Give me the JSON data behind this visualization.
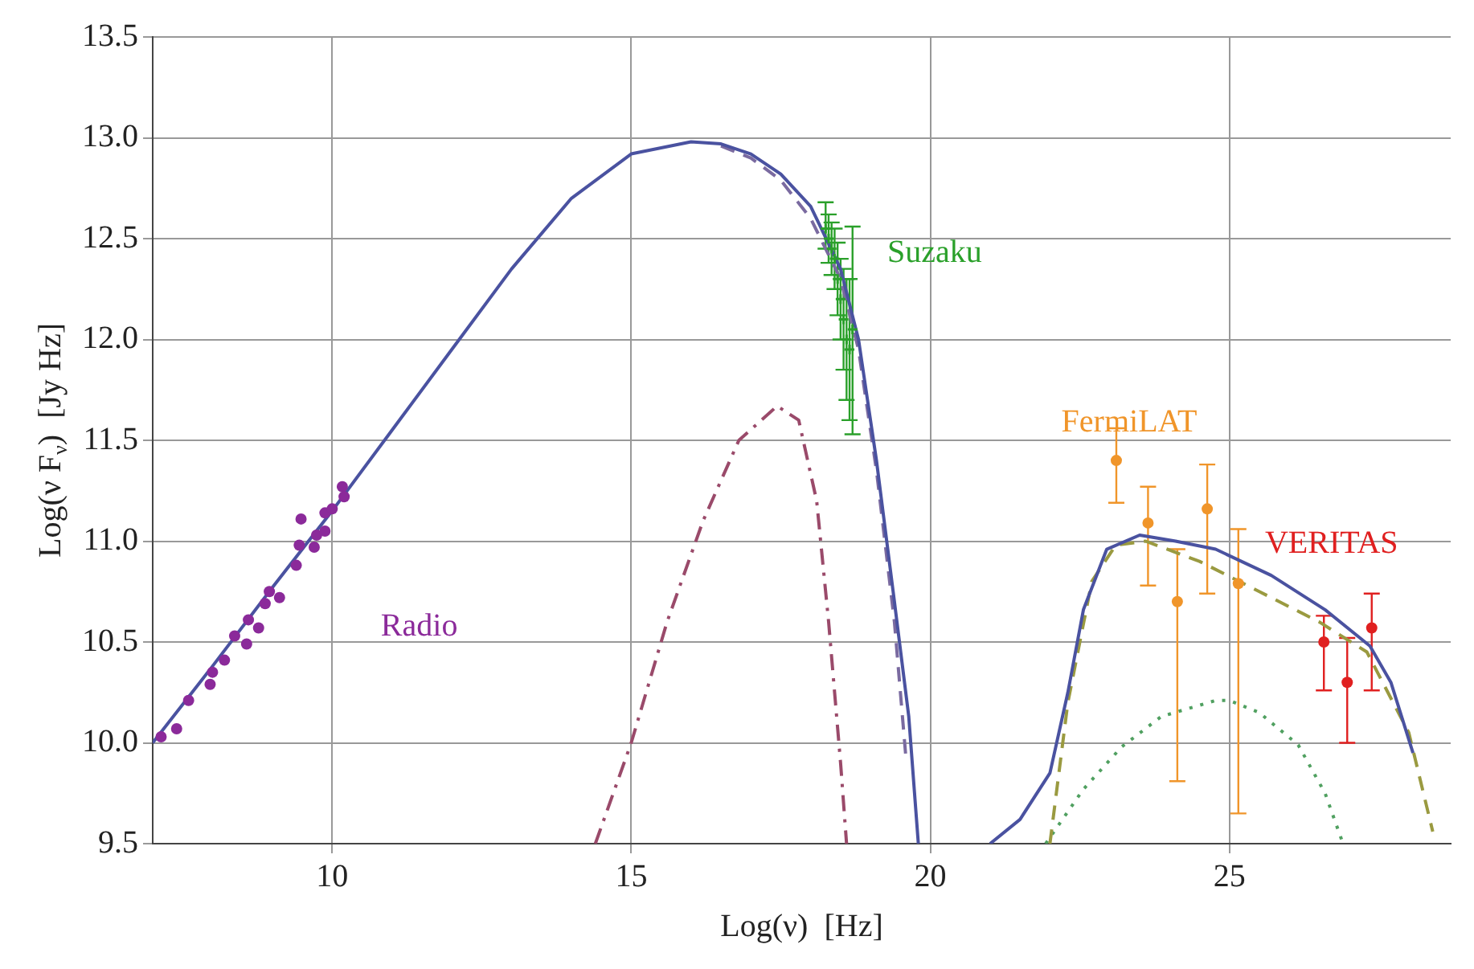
{
  "chart_data": {
    "type": "scatter",
    "xlabel": "Log(ν)  [Hz]",
    "ylabel": "Log(ν F$_{ν}$)  [Jy Hz]",
    "xlim": [
      7,
      28.7
    ],
    "xticks": [
      10,
      15,
      20,
      25
    ],
    "ylim": [
      9.5,
      13.5
    ],
    "yticks": [
      9.5,
      {
        "value": 10,
        "label": "10.0"
      },
      10.5,
      {
        "value": 11,
        "label": "11.0"
      },
      11.5,
      {
        "value": 12,
        "label": "12.0"
      },
      12.5,
      {
        "value": 13,
        "label": "13.0"
      },
      13.5
    ],
    "grid": true,
    "legend": false,
    "series": [
      {
        "name": "Radio",
        "type": "scatter",
        "marker": "circle",
        "color": "#8b2a9a",
        "x": [
          7.14,
          7.4,
          7.6,
          7.96,
          8.0,
          8.2,
          8.37,
          8.57,
          8.6,
          8.77,
          8.88,
          8.95,
          9.12,
          9.4,
          9.45,
          9.48,
          9.7,
          9.74,
          9.88,
          9.88,
          10.0,
          10.17,
          10.2
        ],
        "values": [
          10.03,
          10.07,
          10.21,
          10.29,
          10.35,
          10.41,
          10.53,
          10.49,
          10.61,
          10.57,
          10.69,
          10.75,
          10.72,
          10.88,
          10.98,
          11.11,
          10.97,
          11.03,
          11.05,
          11.14,
          11.16,
          11.27,
          11.22
        ]
      },
      {
        "name": "Suzaku",
        "type": "scatter",
        "marker": "cross",
        "color": "#2aa02a",
        "x": [
          18.25,
          18.3,
          18.35,
          18.4,
          18.45,
          18.5,
          18.55,
          18.6,
          18.65,
          18.7
        ],
        "values": [
          12.55,
          12.5,
          12.45,
          12.4,
          12.3,
          12.2,
          12.1,
          12.0,
          11.95,
          12.05
        ],
        "errors": [
          [
            12.45,
            12.68
          ],
          [
            12.38,
            12.62
          ],
          [
            12.32,
            12.58
          ],
          [
            12.25,
            12.55
          ],
          [
            12.12,
            12.48
          ],
          [
            12.0,
            12.4
          ],
          [
            11.85,
            12.35
          ],
          [
            11.7,
            12.3
          ],
          [
            11.6,
            12.3
          ],
          [
            11.53,
            12.56
          ]
        ]
      },
      {
        "name": "FermiLAT",
        "type": "scatter",
        "marker": "circle",
        "color": "#f0952a",
        "x": [
          23.11,
          23.64,
          24.13,
          24.63,
          25.15
        ],
        "values": [
          11.4,
          11.09,
          10.7,
          11.16,
          10.79
        ],
        "errors": [
          [
            11.19,
            11.56
          ],
          [
            10.78,
            11.27
          ],
          [
            9.81,
            10.96
          ],
          [
            10.74,
            11.38
          ],
          [
            9.65,
            11.06
          ]
        ]
      },
      {
        "name": "VERITAS",
        "type": "scatter",
        "marker": "circle",
        "color": "#e02020",
        "x": [
          26.58,
          26.97,
          27.38
        ],
        "values": [
          10.5,
          10.3,
          10.57
        ],
        "errors": [
          [
            10.26,
            10.63
          ],
          [
            10.0,
            10.52
          ],
          [
            10.26,
            10.74
          ]
        ]
      },
      {
        "type": "line",
        "marker": "none",
        "line_style": "solid",
        "color": "#4a52a0",
        "x": [
          7,
          8,
          9,
          10,
          11,
          12,
          13,
          14,
          15,
          16,
          16.5,
          17,
          17.5,
          18,
          18.5,
          18.8,
          19.1,
          19.4,
          19.64,
          19.8,
          20.4,
          21.0,
          21.5,
          22.0,
          22.3,
          22.56,
          22.95,
          23.5,
          24.1,
          24.77,
          25.7,
          26.6,
          27.35,
          27.7,
          28.07
        ],
        "values": [
          10.0,
          10.38,
          10.77,
          11.15,
          11.55,
          11.95,
          12.35,
          12.7,
          12.92,
          12.98,
          12.97,
          12.92,
          12.82,
          12.66,
          12.35,
          12.0,
          11.4,
          10.7,
          10.13,
          9.5,
          null,
          9.5,
          9.62,
          9.85,
          10.25,
          10.66,
          10.96,
          11.03,
          11.0,
          10.96,
          10.83,
          10.66,
          10.48,
          10.3,
          9.95
        ]
      },
      {
        "type": "line",
        "marker": "none",
        "line_style": "dashed",
        "color": "#7a6aa0",
        "x": [
          16.5,
          17,
          17.5,
          18,
          18.5,
          18.8,
          19.1,
          19.4,
          19.6
        ],
        "values": [
          12.96,
          12.9,
          12.79,
          12.6,
          12.3,
          11.95,
          11.35,
          10.6,
          9.9
        ]
      },
      {
        "type": "line",
        "marker": "none",
        "line_style": "dashdot",
        "color": "#9a4a6a",
        "x": [
          14.4,
          15.0,
          15.6,
          16.2,
          16.8,
          17.44,
          17.8,
          18.1,
          18.3,
          18.5,
          18.6
        ],
        "values": [
          9.5,
          10.0,
          10.6,
          11.1,
          11.5,
          11.67,
          11.6,
          11.2,
          10.6,
          9.9,
          9.5
        ]
      },
      {
        "type": "line",
        "marker": "none",
        "line_style": "dashed",
        "color": "#9a9a40",
        "x": [
          22.0,
          22.3,
          22.7,
          23.1,
          23.6,
          24.5,
          25.5,
          26.5,
          27.3,
          28.0,
          28.4
        ],
        "values": [
          9.5,
          10.2,
          10.8,
          10.98,
          11.0,
          10.9,
          10.75,
          10.6,
          10.45,
          10.05,
          9.56
        ]
      },
      {
        "type": "line",
        "marker": "none",
        "line_style": "dotted",
        "color": "#50a060",
        "x": [
          21.93,
          22.56,
          23.2,
          23.86,
          24.77,
          25.0,
          25.5,
          26.15,
          26.6,
          26.9
        ],
        "values": [
          9.5,
          9.77,
          9.98,
          10.13,
          10.21,
          10.21,
          10.15,
          9.99,
          9.75,
          9.5
        ]
      }
    ]
  }
}
